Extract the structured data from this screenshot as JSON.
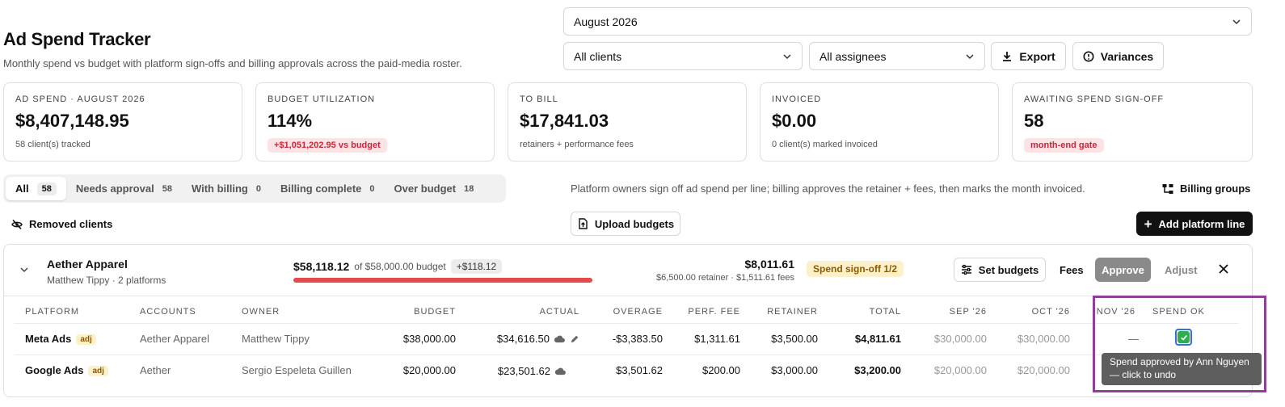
{
  "header": {
    "title": "Ad Spend Tracker",
    "subtitle": "Monthly spend vs budget with platform sign-offs and billing approvals across the paid-media roster."
  },
  "filters": {
    "month": "August 2026",
    "clients": "All clients",
    "assignees": "All assignees",
    "export_label": "Export",
    "variances_label": "Variances"
  },
  "cards": [
    {
      "label": "AD SPEND · AUGUST 2026",
      "value": "$8,407,148.95",
      "sub": "58 client(s) tracked"
    },
    {
      "label": "BUDGET UTILIZATION",
      "value": "114%",
      "badge": "+$1,051,202.95 vs budget"
    },
    {
      "label": "TO BILL",
      "value": "$17,841.03",
      "sub": "retainers + performance fees"
    },
    {
      "label": "INVOICED",
      "value": "$0.00",
      "sub": "0 client(s) marked invoiced"
    },
    {
      "label": "AWAITING SPEND SIGN-OFF",
      "value": "58",
      "badge": "month-end gate"
    }
  ],
  "tabs": [
    {
      "label": "All",
      "count": "58"
    },
    {
      "label": "Needs approval",
      "count": "58"
    },
    {
      "label": "With billing",
      "count": "0"
    },
    {
      "label": "Billing complete",
      "count": "0"
    },
    {
      "label": "Over budget",
      "count": "18"
    }
  ],
  "help_text": "Platform owners sign off ad spend per line; billing approves the retainer + fees, then marks the month invoiced.",
  "actions": {
    "billing_groups": "Billing groups",
    "removed_clients": "Removed clients",
    "upload_budgets": "Upload budgets",
    "add_platform_line": "Add platform line"
  },
  "group": {
    "name": "Aether Apparel",
    "sub": "Matthew Tippy · 2 platforms",
    "spend": "$58,118.12",
    "of_budget": "of $58,000.00 budget",
    "over": "+$118.12",
    "total": "$8,011.61",
    "total_sub": "$6,500.00 retainer · $1,511.61 fees",
    "signoff": "Spend sign-off 1/2",
    "set_budgets": "Set budgets",
    "fees": "Fees",
    "approve": "Approve",
    "adjust": "Adjust",
    "bar_color": "#e44a50"
  },
  "table": {
    "headers": [
      "PLATFORM",
      "ACCOUNTS",
      "OWNER",
      "BUDGET",
      "ACTUAL",
      "OVERAGE",
      "PERF. FEE",
      "RETAINER",
      "TOTAL",
      "SEP '26",
      "OCT '26",
      "NOV '26",
      "SPEND OK"
    ],
    "rows": [
      {
        "platform": "Meta Ads",
        "tag": "adj",
        "accounts": "Aether Apparel",
        "owner": "Matthew Tippy",
        "budget": "$38,000.00",
        "actual": "$34,616.50",
        "overage": "-$3,383.50",
        "perf_fee": "$1,311.61",
        "retainer": "$3,500.00",
        "total": "$4,811.61",
        "sep": "$30,000.00",
        "oct": "$30,000.00",
        "nov": "—",
        "spend_ok": true
      },
      {
        "platform": "Google Ads",
        "tag": "adj",
        "accounts": "Aether",
        "owner": "Sergio Espeleta Guillen",
        "budget": "$20,000.00",
        "actual": "$23,501.62",
        "overage": "$3,501.62",
        "perf_fee": "$200.00",
        "retainer": "$3,000.00",
        "total": "$3,200.00",
        "sep": "$20,000.00",
        "oct": "$20,000.00"
      }
    ]
  },
  "tooltip": "Spend approved by Ann Nguyen — click to undo"
}
